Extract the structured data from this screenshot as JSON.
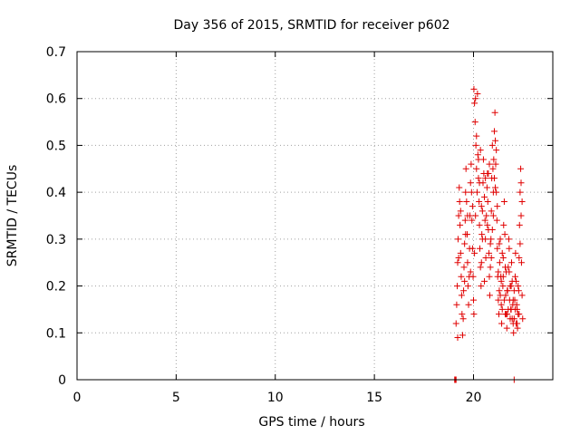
{
  "chart_data": {
    "type": "scatter",
    "title": "Day 356 of 2015, SRMTID for receiver p602",
    "xlabel": "GPS time / hours",
    "ylabel": "SRMTID / TECUs",
    "xlim": [
      0,
      24
    ],
    "ylim": [
      0,
      0.7
    ],
    "xticks": [
      "0",
      "5",
      "10",
      "15",
      "20"
    ],
    "xtick_values": [
      0,
      5,
      10,
      15,
      20
    ],
    "yticks": [
      "0",
      "0.1",
      "0.2",
      "0.3",
      "0.4",
      "0.5",
      "0.6",
      "0.7"
    ],
    "ytick_values": [
      0,
      0.1,
      0.2,
      0.3,
      0.4,
      0.5,
      0.6,
      0.7
    ],
    "grid": true,
    "marker": "+",
    "color": "#e00000",
    "series": [
      {
        "points": [
          [
            19.05,
            0.0
          ],
          [
            19.08,
            0.0
          ],
          [
            19.1,
            0.0
          ],
          [
            19.12,
            0.0
          ],
          [
            19.12,
            0.12
          ],
          [
            19.15,
            0.16
          ],
          [
            19.18,
            0.2
          ],
          [
            19.2,
            0.25
          ],
          [
            19.22,
            0.3
          ],
          [
            19.25,
            0.35
          ],
          [
            19.28,
            0.41
          ],
          [
            19.3,
            0.38
          ],
          [
            19.32,
            0.33
          ],
          [
            19.35,
            0.27
          ],
          [
            19.38,
            0.22
          ],
          [
            19.4,
            0.18
          ],
          [
            19.42,
            0.14
          ],
          [
            19.45,
            0.095
          ],
          [
            19.48,
            0.13
          ],
          [
            19.5,
            0.19
          ],
          [
            19.52,
            0.24
          ],
          [
            19.55,
            0.29
          ],
          [
            19.58,
            0.34
          ],
          [
            19.6,
            0.4
          ],
          [
            19.62,
            0.45
          ],
          [
            19.65,
            0.38
          ],
          [
            19.68,
            0.31
          ],
          [
            19.7,
            0.25
          ],
          [
            19.72,
            0.2
          ],
          [
            19.75,
            0.16
          ],
          [
            19.78,
            0.22
          ],
          [
            19.8,
            0.28
          ],
          [
            19.82,
            0.35
          ],
          [
            19.85,
            0.42
          ],
          [
            19.88,
            0.46
          ],
          [
            19.9,
            0.4
          ],
          [
            19.92,
            0.34
          ],
          [
            19.95,
            0.28
          ],
          [
            19.98,
            0.22
          ],
          [
            20.0,
            0.17
          ],
          [
            20.02,
            0.14
          ],
          [
            20.02,
            0.62
          ],
          [
            20.05,
            0.59
          ],
          [
            20.08,
            0.55
          ],
          [
            20.1,
            0.6
          ],
          [
            20.12,
            0.5
          ],
          [
            20.15,
            0.45
          ],
          [
            20.18,
            0.4
          ],
          [
            20.2,
            0.61
          ],
          [
            20.22,
            0.48
          ],
          [
            20.25,
            0.43
          ],
          [
            20.28,
            0.38
          ],
          [
            20.3,
            0.33
          ],
          [
            20.32,
            0.28
          ],
          [
            20.35,
            0.24
          ],
          [
            20.38,
            0.2
          ],
          [
            20.4,
            0.25
          ],
          [
            20.42,
            0.31
          ],
          [
            20.45,
            0.36
          ],
          [
            20.48,
            0.42
          ],
          [
            20.5,
            0.47
          ],
          [
            20.52,
            0.44
          ],
          [
            20.55,
            0.39
          ],
          [
            20.58,
            0.34
          ],
          [
            20.6,
            0.3
          ],
          [
            20.62,
            0.26
          ],
          [
            20.65,
            0.35
          ],
          [
            20.68,
            0.41
          ],
          [
            20.7,
            0.44
          ],
          [
            20.72,
            0.38
          ],
          [
            20.75,
            0.32
          ],
          [
            20.78,
            0.27
          ],
          [
            20.8,
            0.22
          ],
          [
            20.82,
            0.18
          ],
          [
            20.85,
            0.24
          ],
          [
            20.88,
            0.3
          ],
          [
            20.9,
            0.36
          ],
          [
            20.92,
            0.43
          ],
          [
            20.95,
            0.5
          ],
          [
            20.98,
            0.45
          ],
          [
            21.0,
            0.4
          ],
          [
            21.02,
            0.47
          ],
          [
            21.05,
            0.53
          ],
          [
            21.08,
            0.57
          ],
          [
            21.1,
            0.51
          ],
          [
            21.12,
            0.46
          ],
          [
            21.15,
            0.4
          ],
          [
            21.18,
            0.34
          ],
          [
            21.2,
            0.28
          ],
          [
            21.22,
            0.22
          ],
          [
            21.25,
            0.17
          ],
          [
            21.28,
            0.14
          ],
          [
            21.3,
            0.19
          ],
          [
            21.32,
            0.25
          ],
          [
            21.35,
            0.3
          ],
          [
            21.38,
            0.22
          ],
          [
            21.4,
            0.16
          ],
          [
            21.42,
            0.12
          ],
          [
            21.45,
            0.15
          ],
          [
            21.48,
            0.2
          ],
          [
            21.5,
            0.26
          ],
          [
            21.52,
            0.33
          ],
          [
            21.55,
            0.38
          ],
          [
            21.58,
            0.31
          ],
          [
            21.6,
            0.24
          ],
          [
            21.62,
            0.18
          ],
          [
            21.65,
            0.14
          ],
          [
            21.68,
            0.11
          ],
          [
            21.7,
            0.14
          ],
          [
            21.72,
            0.19
          ],
          [
            21.75,
            0.24
          ],
          [
            21.78,
            0.3
          ],
          [
            21.8,
            0.23
          ],
          [
            21.82,
            0.17
          ],
          [
            21.85,
            0.13
          ],
          [
            21.88,
            0.15
          ],
          [
            21.9,
            0.2
          ],
          [
            21.92,
            0.25
          ],
          [
            21.95,
            0.21
          ],
          [
            21.98,
            0.16
          ],
          [
            22.0,
            0.12
          ],
          [
            22.02,
            0.1
          ],
          [
            22.05,
            0.13
          ],
          [
            22.08,
            0.17
          ],
          [
            22.1,
            0.22
          ],
          [
            22.12,
            0.27
          ],
          [
            22.15,
            0.21
          ],
          [
            22.18,
            0.16
          ],
          [
            22.2,
            0.12
          ],
          [
            22.22,
            0.11
          ],
          [
            22.25,
            0.14
          ],
          [
            22.28,
            0.19
          ],
          [
            22.3,
            0.26
          ],
          [
            22.32,
            0.33
          ],
          [
            22.35,
            0.4
          ],
          [
            22.38,
            0.45
          ],
          [
            22.4,
            0.35
          ],
          [
            22.42,
            0.25
          ],
          [
            22.45,
            0.18
          ],
          [
            22.48,
            0.13
          ],
          [
            22.05,
            0.0
          ],
          [
            19.2,
            0.09
          ],
          [
            19.25,
            0.26
          ],
          [
            19.35,
            0.36
          ],
          [
            19.55,
            0.21
          ],
          [
            19.6,
            0.31
          ],
          [
            19.7,
            0.35
          ],
          [
            19.85,
            0.23
          ],
          [
            19.95,
            0.37
          ],
          [
            20.05,
            0.27
          ],
          [
            20.1,
            0.35
          ],
          [
            20.15,
            0.52
          ],
          [
            20.25,
            0.47
          ],
          [
            20.3,
            0.42
          ],
          [
            20.35,
            0.49
          ],
          [
            20.4,
            0.37
          ],
          [
            20.45,
            0.3
          ],
          [
            20.55,
            0.21
          ],
          [
            20.6,
            0.43
          ],
          [
            20.7,
            0.33
          ],
          [
            20.75,
            0.44
          ],
          [
            20.8,
            0.46
          ],
          [
            20.85,
            0.29
          ],
          [
            20.9,
            0.26
          ],
          [
            20.95,
            0.32
          ],
          [
            21.0,
            0.35
          ],
          [
            21.05,
            0.43
          ],
          [
            21.1,
            0.41
          ],
          [
            21.15,
            0.49
          ],
          [
            21.2,
            0.37
          ],
          [
            21.25,
            0.23
          ],
          [
            21.3,
            0.29
          ],
          [
            21.35,
            0.18
          ],
          [
            21.4,
            0.21
          ],
          [
            21.45,
            0.27
          ],
          [
            21.5,
            0.22
          ],
          [
            21.55,
            0.17
          ],
          [
            21.6,
            0.14
          ],
          [
            21.65,
            0.23
          ],
          [
            21.7,
            0.19
          ],
          [
            21.75,
            0.15
          ],
          [
            21.8,
            0.28
          ],
          [
            21.85,
            0.2
          ],
          [
            21.9,
            0.15
          ],
          [
            21.95,
            0.13
          ],
          [
            22.0,
            0.17
          ],
          [
            22.05,
            0.19
          ],
          [
            22.1,
            0.15
          ],
          [
            22.15,
            0.12
          ],
          [
            22.2,
            0.15
          ],
          [
            22.25,
            0.2
          ],
          [
            22.3,
            0.14
          ],
          [
            22.35,
            0.29
          ],
          [
            22.4,
            0.42
          ],
          [
            22.45,
            0.38
          ]
        ]
      }
    ]
  }
}
